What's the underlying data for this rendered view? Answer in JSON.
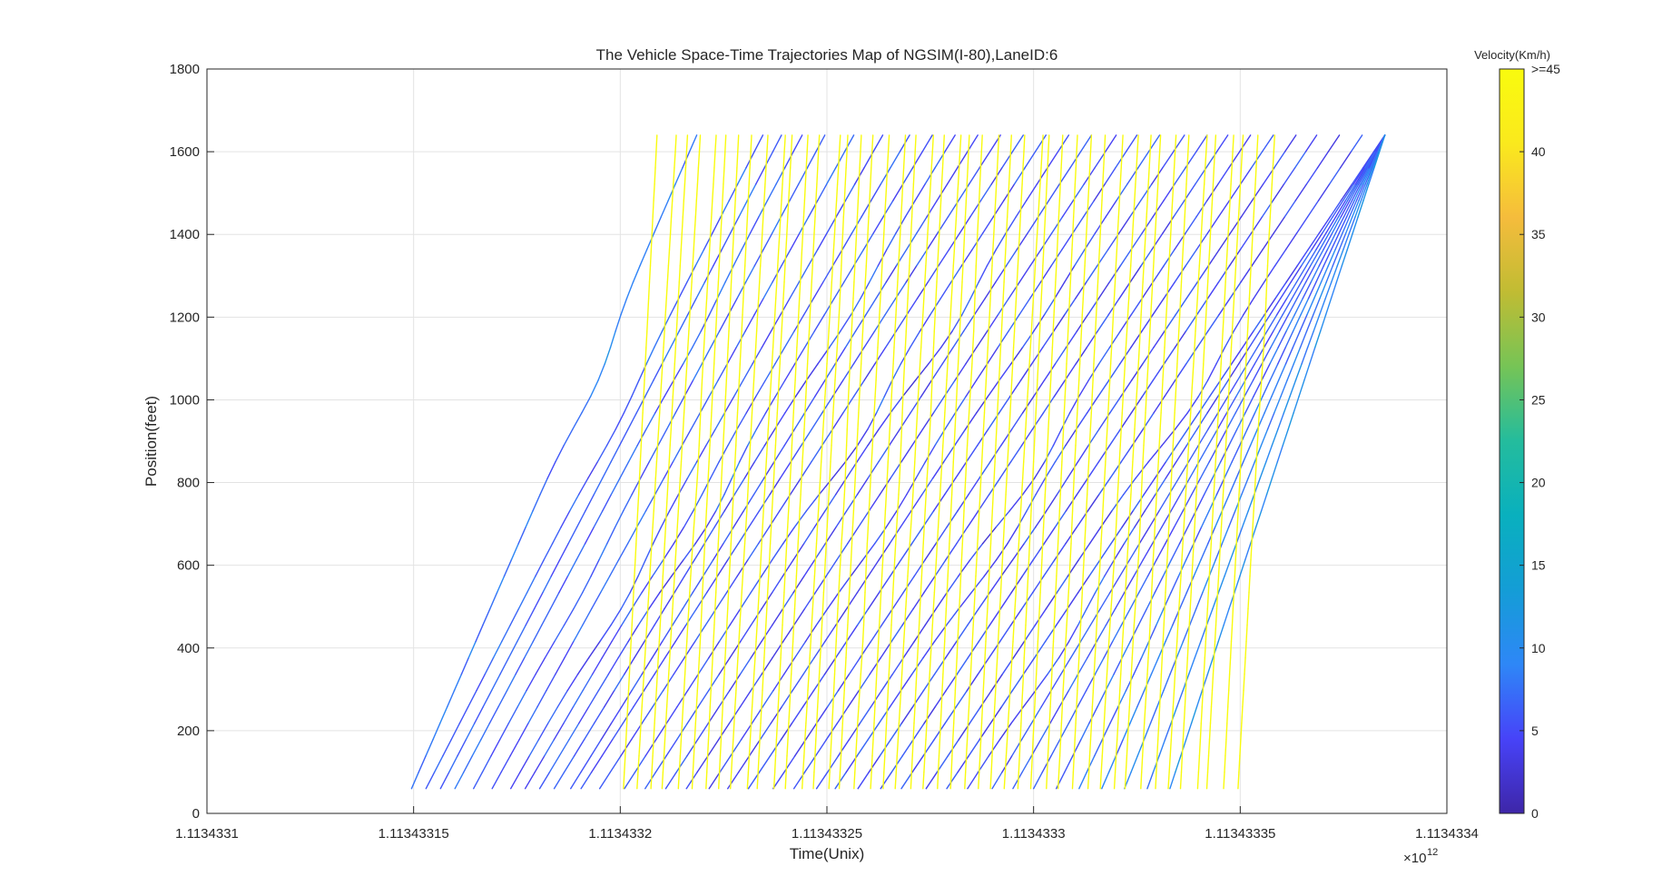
{
  "chart_data": {
    "type": "line",
    "title": "The Vehicle Space-Time Trajectories Map of NGSIM(I-80),LaneID:6",
    "xlabel": "Time(Unix)",
    "ylabel": "Position(feet)",
    "x_exponent_label": "×10",
    "x_exponent_power": "12",
    "xlim": [
      1.1134331,
      1.1134334
    ],
    "ylim": [
      0,
      1800
    ],
    "xticks": [
      1.1134331,
      1.11343315,
      1.1134332,
      1.11343325,
      1.1134333,
      1.11343335,
      1.1134334
    ],
    "xtick_labels": [
      "1.1134331",
      "1.11343315",
      "1.1134332",
      "1.11343325",
      "1.1134333",
      "1.11343335",
      "1.1134334"
    ],
    "yticks": [
      0,
      200,
      400,
      600,
      800,
      1000,
      1200,
      1400,
      1600,
      1800
    ],
    "ytick_labels": [
      "0",
      "200",
      "400",
      "600",
      "800",
      "1000",
      "1200",
      "1400",
      "1600",
      "1800"
    ],
    "grid": true,
    "colorbar": {
      "title": "Velocity(Km/h)",
      "range": [
        0,
        45
      ],
      "ticks": [
        0,
        5,
        10,
        15,
        20,
        25,
        30,
        35,
        40,
        45
      ],
      "tick_labels": [
        "0",
        "5",
        "10",
        "15",
        "20",
        "25",
        "30",
        "35",
        "40",
        ">=45"
      ],
      "colormap": [
        "#3e26a8",
        "#4743f8",
        "#2e87f7",
        "#149dd6",
        "#09b0be",
        "#24bc9d",
        "#76c456",
        "#c0bc33",
        "#f5bc3c",
        "#fae91d",
        "#f9fb0e"
      ]
    },
    "trajectory_sample": {
      "start_x": [
        1.1134331495,
        1.113433153,
        1.1134331565,
        1.11343316,
        1.1134331645,
        1.113433169,
        1.1134331735,
        1.113433177,
        1.1134331805,
        1.113433184,
        1.113433188,
        1.1134331905,
        1.113433195,
        1.113433201,
        1.113433206,
        1.113433211,
        1.113433216,
        1.1134332215,
        1.113433226,
        1.113433231,
        1.113433237,
        1.113433242,
        1.1134332475,
        1.113433252,
        1.1134332575,
        1.113433263,
        1.113433268,
        1.113433274,
        1.113433279,
        1.113433284,
        1.11343329,
        1.113433295,
        1.1134333,
        1.1134333055,
        1.113433311,
        1.1134333165,
        1.113433322,
        1.1134333275,
        1.113433333
      ],
      "end_x": [
        1.1134332185,
        1.1134332345,
        1.113433239,
        1.113433244,
        1.1134332495,
        1.1134332565,
        1.1134332635,
        1.11343327,
        1.1134332755,
        1.113433281,
        1.1134332865,
        1.113433292,
        1.1134332975,
        1.113433303,
        1.1134333085,
        1.113433314,
        1.11343332,
        1.113433325,
        1.1134333305,
        1.1134333365,
        1.113433342,
        1.113433347,
        1.1134333525,
        1.113433358,
        1.1134333635,
        1.1134333685,
        1.113433374,
        1.1134333795,
        1.113433385
      ],
      "y_start": 60,
      "y_end": 1640
    }
  }
}
